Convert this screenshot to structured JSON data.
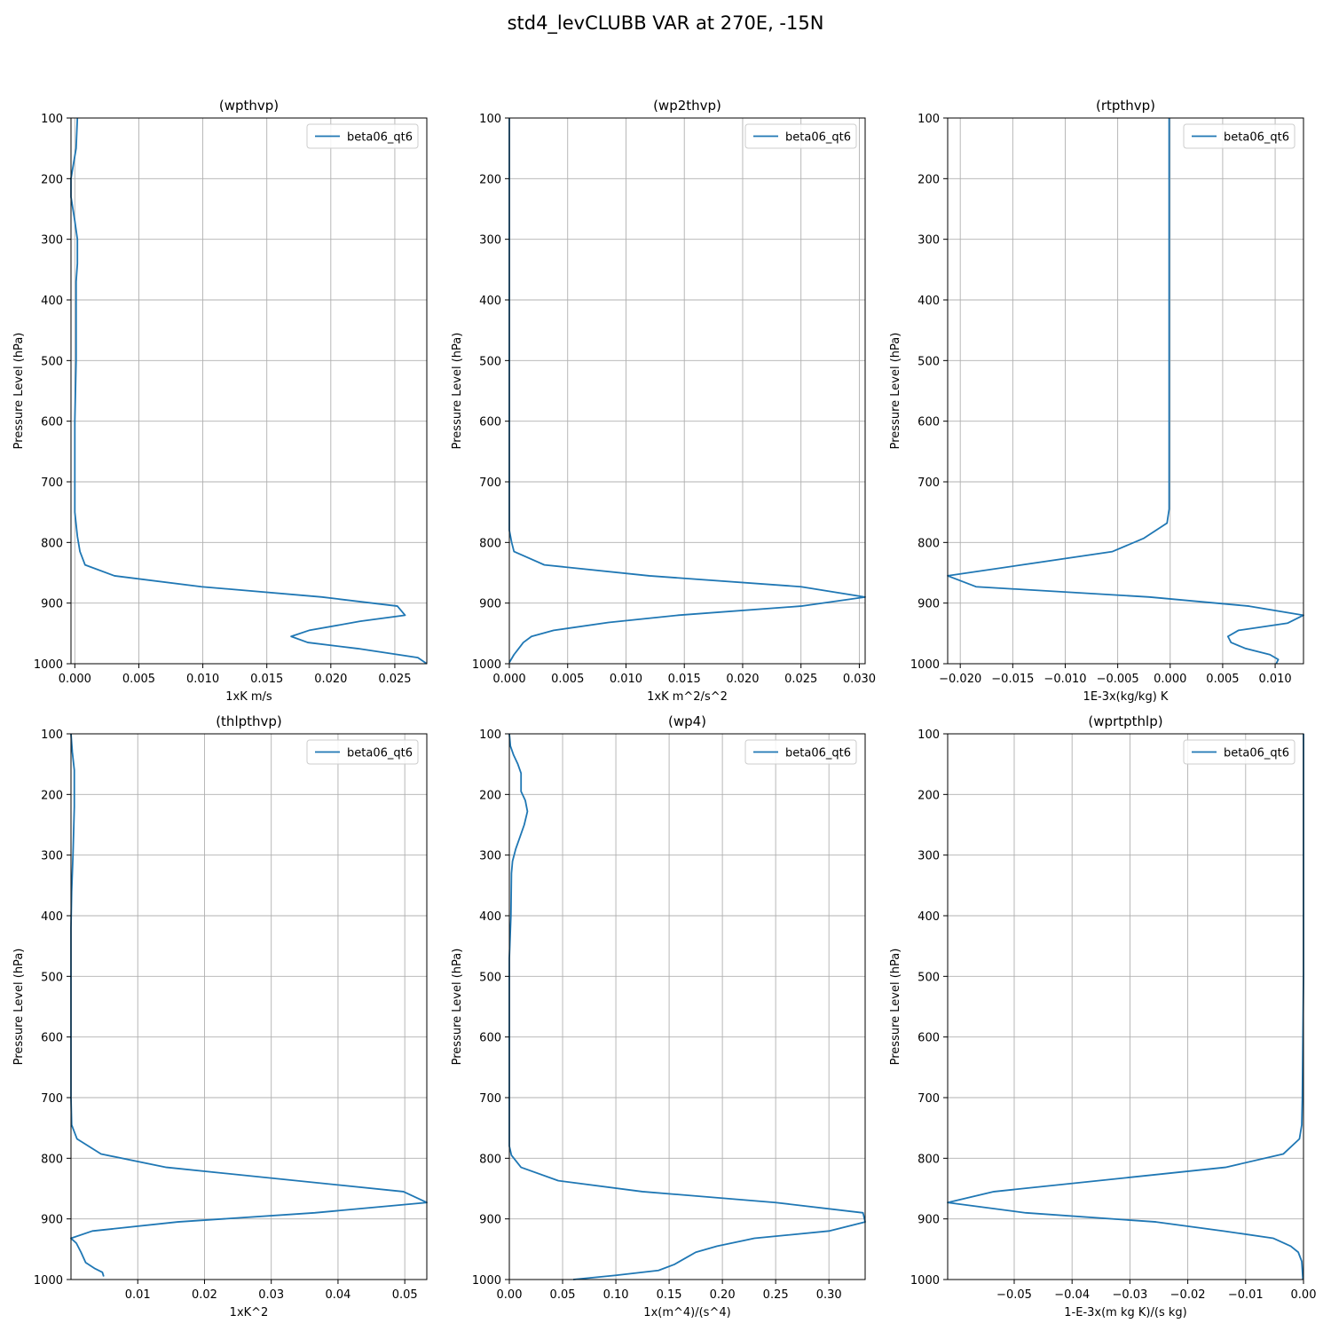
{
  "figure": {
    "title": "std4_levCLUBB VAR at 270E, -15N"
  },
  "chart_data": [
    {
      "type": "line",
      "title": "(wpthvp)",
      "xlabel": "1xK m/s",
      "ylabel": "Pressure Level (hPa)",
      "xlim": [
        -0.0003,
        0.0275
      ],
      "ylim": [
        1000,
        100
      ],
      "xticks": [
        0.0,
        0.005,
        0.01,
        0.015,
        0.02,
        0.025
      ],
      "xtick_labels": [
        "0.000",
        "0.005",
        "0.010",
        "0.015",
        "0.020",
        "0.025"
      ],
      "yticks": [
        100,
        200,
        300,
        400,
        500,
        600,
        700,
        800,
        900,
        1000
      ],
      "ytick_labels": [
        "100",
        "200",
        "300",
        "400",
        "500",
        "600",
        "700",
        "800",
        "900",
        "1000"
      ],
      "grid": true,
      "legend": "upper right",
      "series": [
        {
          "name": "beta06_qt6",
          "color": "#1f77b4",
          "points": [
            [
              0.0002,
              100
            ],
            [
              0.0001,
              150
            ],
            [
              -0.0003,
              200
            ],
            [
              -0.0003,
              230
            ],
            [
              0.0,
              270
            ],
            [
              0.0002,
              300
            ],
            [
              0.0002,
              340
            ],
            [
              0.0001,
              370
            ],
            [
              0.0001,
              500
            ],
            [
              0.0,
              600
            ],
            [
              0.0,
              700
            ],
            [
              0.0,
              750
            ],
            [
              0.0002,
              790
            ],
            [
              0.0004,
              815
            ],
            [
              0.0008,
              837
            ],
            [
              0.0031,
              855
            ],
            [
              0.0099,
              873
            ],
            [
              0.0193,
              890
            ],
            [
              0.0252,
              905
            ],
            [
              0.0258,
              920
            ],
            [
              0.0223,
              930
            ],
            [
              0.0183,
              945
            ],
            [
              0.0169,
              955
            ],
            [
              0.0182,
              965
            ],
            [
              0.0221,
              975
            ],
            [
              0.0268,
              990
            ],
            [
              0.0275,
              1000
            ]
          ]
        }
      ]
    },
    {
      "type": "line",
      "title": "(wp2thvp)",
      "xlabel": "1xK m^2/s^2",
      "ylabel": "Pressure Level (hPa)",
      "xlim": [
        0.0,
        0.0305
      ],
      "ylim": [
        1000,
        100
      ],
      "xticks": [
        0.0,
        0.005,
        0.01,
        0.015,
        0.02,
        0.025,
        0.03
      ],
      "xtick_labels": [
        "0.000",
        "0.005",
        "0.010",
        "0.015",
        "0.020",
        "0.025",
        "0.030"
      ],
      "yticks": [
        100,
        200,
        300,
        400,
        500,
        600,
        700,
        800,
        900,
        1000
      ],
      "ytick_labels": [
        "100",
        "200",
        "300",
        "400",
        "500",
        "600",
        "700",
        "800",
        "900",
        "1000"
      ],
      "grid": true,
      "legend": "upper right",
      "series": [
        {
          "name": "beta06_qt6",
          "color": "#1f77b4",
          "points": [
            [
              0.0,
              100
            ],
            [
              0.0,
              500
            ],
            [
              0.0,
              700
            ],
            [
              0.0,
              780
            ],
            [
              0.0002,
              800
            ],
            [
              0.0004,
              815
            ],
            [
              0.003,
              837
            ],
            [
              0.012,
              855
            ],
            [
              0.025,
              873
            ],
            [
              0.0305,
              890
            ],
            [
              0.025,
              905
            ],
            [
              0.0145,
              920
            ],
            [
              0.0085,
              932
            ],
            [
              0.0038,
              945
            ],
            [
              0.0019,
              955
            ],
            [
              0.0012,
              965
            ],
            [
              0.0008,
              975
            ],
            [
              0.0004,
              985
            ],
            [
              0.0,
              998
            ]
          ]
        }
      ]
    },
    {
      "type": "line",
      "title": "(rtpthvp)",
      "xlabel": "1E-3x(kg/kg) K",
      "ylabel": "Pressure Level (hPa)",
      "xlim": [
        -0.0212,
        0.0127
      ],
      "ylim": [
        1000,
        100
      ],
      "xticks": [
        -0.02,
        -0.015,
        -0.01,
        -0.005,
        0.0,
        0.005,
        0.01
      ],
      "xtick_labels": [
        "−0.020",
        "−0.015",
        "−0.010",
        "−0.005",
        "0.000",
        "0.005",
        "0.010"
      ],
      "yticks": [
        100,
        200,
        300,
        400,
        500,
        600,
        700,
        800,
        900,
        1000
      ],
      "ytick_labels": [
        "100",
        "200",
        "300",
        "400",
        "500",
        "600",
        "700",
        "800",
        "900",
        "1000"
      ],
      "grid": true,
      "legend": "upper right",
      "series": [
        {
          "name": "beta06_qt6",
          "color": "#1f77b4",
          "points": [
            [
              -0.0001,
              100
            ],
            [
              -0.0001,
              300
            ],
            [
              -0.0001,
              600
            ],
            [
              -0.0001,
              745
            ],
            [
              -0.0003,
              768
            ],
            [
              -0.0025,
              793
            ],
            [
              -0.0055,
              815
            ],
            [
              -0.0212,
              855
            ],
            [
              -0.0185,
              873
            ],
            [
              -0.002,
              890
            ],
            [
              0.0075,
              905
            ],
            [
              0.0127,
              920
            ],
            [
              0.0112,
              933
            ],
            [
              0.0065,
              945
            ],
            [
              0.0055,
              955
            ],
            [
              0.0058,
              965
            ],
            [
              0.0072,
              975
            ],
            [
              0.0095,
              985
            ],
            [
              0.0103,
              993
            ],
            [
              0.0101,
              1000
            ]
          ]
        }
      ]
    },
    {
      "type": "line",
      "title": "(thlpthvp)",
      "xlabel": "1xK^2",
      "ylabel": "Pressure Level (hPa)",
      "xlim": [
        0.0,
        0.0533
      ],
      "ylim": [
        1000,
        100
      ],
      "xticks": [
        0.01,
        0.02,
        0.03,
        0.04,
        0.05
      ],
      "xtick_labels": [
        "0.01",
        "0.02",
        "0.03",
        "0.04",
        "0.05"
      ],
      "yticks": [
        100,
        200,
        300,
        400,
        500,
        600,
        700,
        800,
        900,
        1000
      ],
      "ytick_labels": [
        "100",
        "200",
        "300",
        "400",
        "500",
        "600",
        "700",
        "800",
        "900",
        "1000"
      ],
      "grid": true,
      "legend": "upper right",
      "series": [
        {
          "name": "beta06_qt6",
          "color": "#1f77b4",
          "points": [
            [
              0.0,
              100
            ],
            [
              0.0002,
              130
            ],
            [
              0.0005,
              160
            ],
            [
              0.0005,
              220
            ],
            [
              0.0003,
              300
            ],
            [
              0.0001,
              360
            ],
            [
              0.0,
              420
            ],
            [
              0.0,
              700
            ],
            [
              0.0001,
              745
            ],
            [
              0.0009,
              768
            ],
            [
              0.0045,
              793
            ],
            [
              0.0143,
              815
            ],
            [
              0.0498,
              855
            ],
            [
              0.0533,
              873
            ],
            [
              0.0365,
              890
            ],
            [
              0.016,
              905
            ],
            [
              0.0032,
              920
            ],
            [
              0.0,
              932
            ],
            [
              0.0008,
              940
            ],
            [
              0.0015,
              955
            ],
            [
              0.0022,
              972
            ],
            [
              0.0036,
              982
            ],
            [
              0.0047,
              988
            ],
            [
              0.0049,
              995
            ]
          ]
        }
      ]
    },
    {
      "type": "line",
      "title": "(wp4)",
      "xlabel": "1x(m^4)/(s^4)",
      "ylabel": "Pressure Level (hPa)",
      "xlim": [
        0.0,
        0.334
      ],
      "ylim": [
        1000,
        100
      ],
      "xticks": [
        0.0,
        0.05,
        0.1,
        0.15,
        0.2,
        0.25,
        0.3
      ],
      "xtick_labels": [
        "0.00",
        "0.05",
        "0.10",
        "0.15",
        "0.20",
        "0.25",
        "0.30"
      ],
      "yticks": [
        100,
        200,
        300,
        400,
        500,
        600,
        700,
        800,
        900,
        1000
      ],
      "ytick_labels": [
        "100",
        "200",
        "300",
        "400",
        "500",
        "600",
        "700",
        "800",
        "900",
        "1000"
      ],
      "grid": true,
      "legend": "upper right",
      "series": [
        {
          "name": "beta06_qt6",
          "color": "#1f77b4",
          "points": [
            [
              0.0,
              100
            ],
            [
              0.001,
              120
            ],
            [
              0.004,
              135
            ],
            [
              0.008,
              150
            ],
            [
              0.011,
              165
            ],
            [
              0.011,
              195
            ],
            [
              0.015,
              210
            ],
            [
              0.017,
              228
            ],
            [
              0.014,
              250
            ],
            [
              0.01,
              270
            ],
            [
              0.006,
              290
            ],
            [
              0.003,
              310
            ],
            [
              0.002,
              330
            ],
            [
              0.0015,
              400
            ],
            [
              0.0,
              470
            ],
            [
              0.0,
              600
            ],
            [
              0.0,
              700
            ],
            [
              0.0,
              760
            ],
            [
              0.0,
              780
            ],
            [
              0.002,
              795
            ],
            [
              0.011,
              815
            ],
            [
              0.046,
              837
            ],
            [
              0.125,
              855
            ],
            [
              0.25,
              873
            ],
            [
              0.332,
              890
            ],
            [
              0.334,
              905
            ],
            [
              0.3,
              920
            ],
            [
              0.23,
              932
            ],
            [
              0.195,
              945
            ],
            [
              0.175,
              955
            ],
            [
              0.165,
              965
            ],
            [
              0.155,
              975
            ],
            [
              0.14,
              985
            ],
            [
              0.1,
              993
            ],
            [
              0.06,
              1000
            ]
          ]
        }
      ]
    },
    {
      "type": "line",
      "title": "(wprtpthlp)",
      "xlabel": "1-E-3x(m kg K)/(s kg)",
      "ylabel": "Pressure Level (hPa)",
      "xlim": [
        -0.0615,
        0.0
      ],
      "ylim": [
        1000,
        100
      ],
      "xticks": [
        -0.05,
        -0.04,
        -0.03,
        -0.02,
        -0.01,
        0.0
      ],
      "xtick_labels": [
        "−0.05",
        "−0.04",
        "−0.03",
        "−0.02",
        "−0.01",
        "0.00"
      ],
      "yticks": [
        100,
        200,
        300,
        400,
        500,
        600,
        700,
        800,
        900,
        1000
      ],
      "ytick_labels": [
        "100",
        "200",
        "300",
        "400",
        "500",
        "600",
        "700",
        "800",
        "900",
        "1000"
      ],
      "grid": true,
      "legend": "upper right",
      "series": [
        {
          "name": "beta06_qt6",
          "color": "#1f77b4",
          "points": [
            [
              0.0,
              100
            ],
            [
              0.0,
              500
            ],
            [
              -0.0002,
              700
            ],
            [
              -0.0003,
              745
            ],
            [
              -0.0007,
              768
            ],
            [
              -0.0035,
              793
            ],
            [
              -0.0135,
              815
            ],
            [
              -0.0535,
              855
            ],
            [
              -0.0615,
              873
            ],
            [
              -0.048,
              890
            ],
            [
              -0.0255,
              905
            ],
            [
              -0.0138,
              920
            ],
            [
              -0.0052,
              932
            ],
            [
              -0.0022,
              945
            ],
            [
              -0.0009,
              955
            ],
            [
              -0.0003,
              970
            ],
            [
              -0.0002,
              985
            ],
            [
              -0.0001,
              1000
            ]
          ]
        }
      ]
    }
  ]
}
